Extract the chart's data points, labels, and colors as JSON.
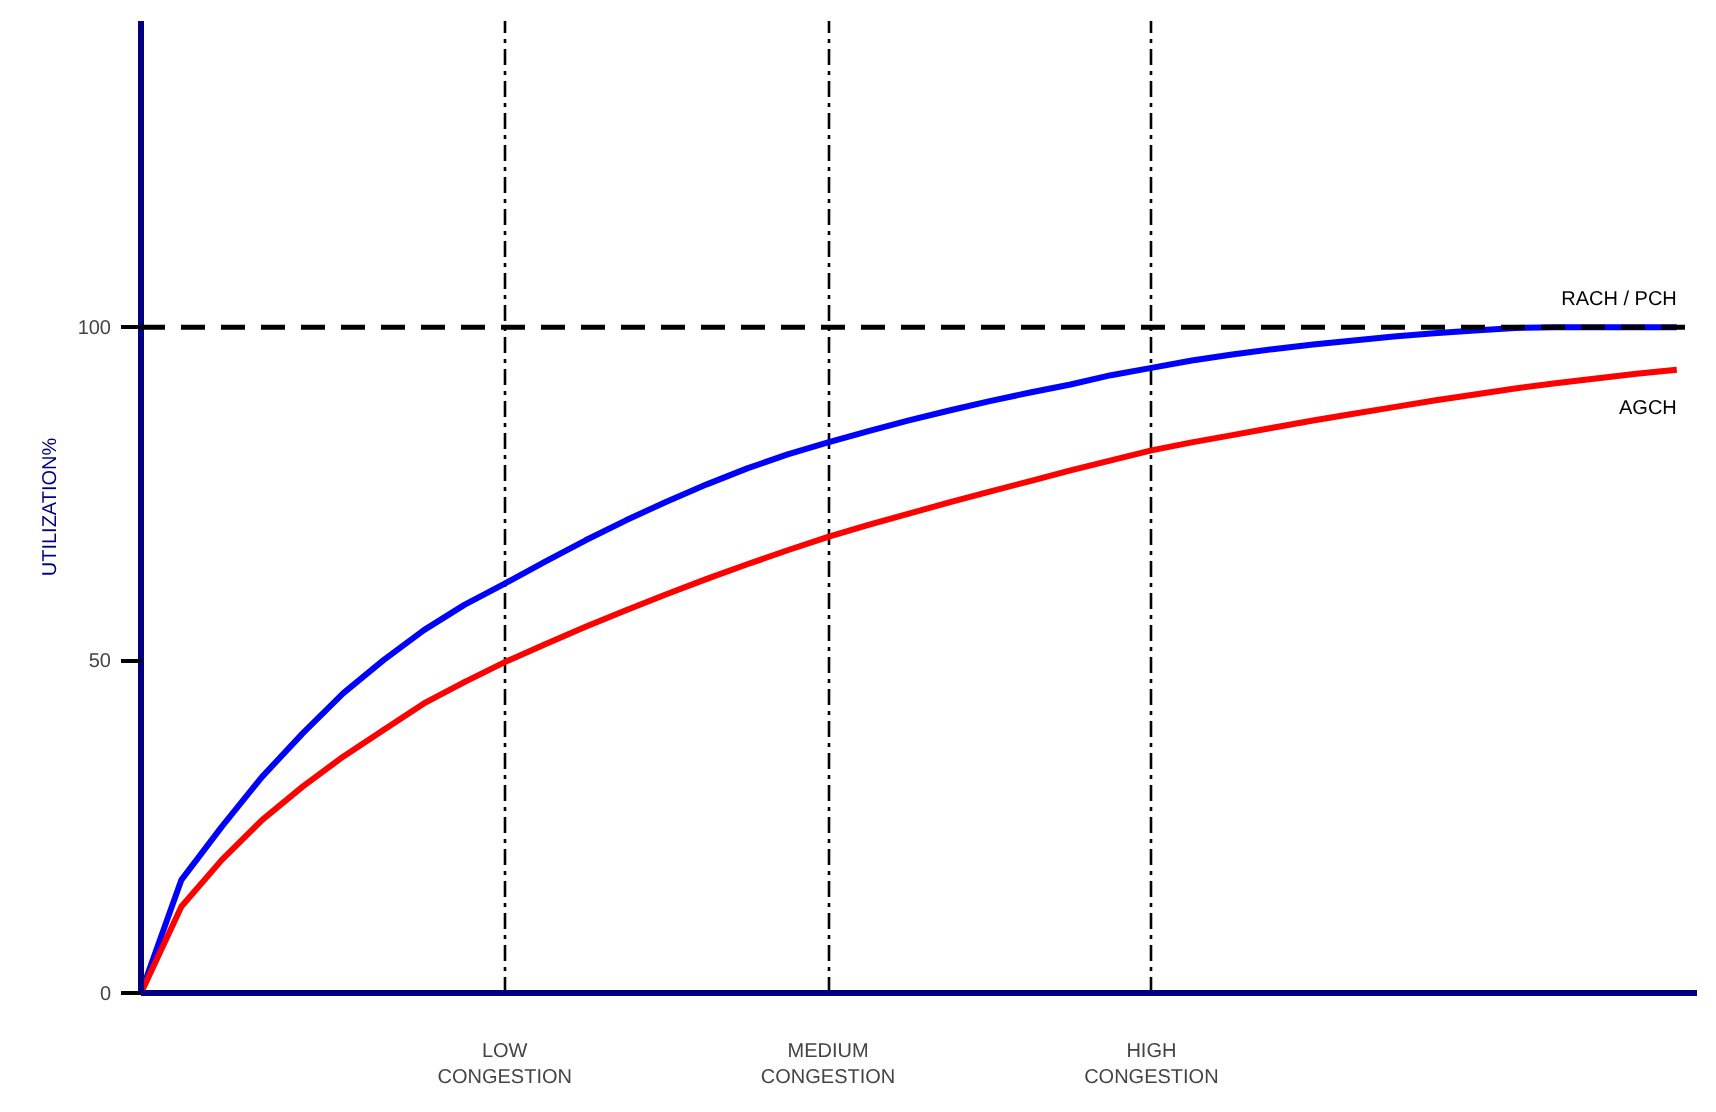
{
  "chart_data": {
    "type": "line",
    "ylabel": "UTILIZATION%",
    "categories": [
      null,
      null,
      null,
      null,
      null,
      null,
      null,
      null,
      null,
      "LOW CONGESTION",
      null,
      null,
      null,
      null,
      null,
      null,
      null,
      "MEDIUM CONGESTION",
      null,
      null,
      null,
      null,
      null,
      null,
      null,
      "HIGH CONGESTION",
      null,
      null,
      null,
      null,
      null,
      null,
      null,
      null,
      null,
      null,
      null,
      null,
      null
    ],
    "series": [
      {
        "name": "RACH / PCH",
        "color": "#0000ff",
        "values": [
          0,
          17,
          25,
          32.5,
          39,
          45,
          50,
          54.5,
          58.3,
          61.5,
          64.8,
          68,
          71,
          73.8,
          76.4,
          78.8,
          80.9,
          82.7,
          84.4,
          86,
          87.5,
          88.9,
          90.2,
          91.4,
          92.8,
          93.9,
          95,
          95.9,
          96.7,
          97.4,
          98,
          98.6,
          99.1,
          99.5,
          99.9,
          100,
          100,
          100,
          100
        ]
      },
      {
        "name": "AGCH",
        "color": "#ff0000",
        "values": [
          0,
          13,
          20,
          26,
          31,
          35.5,
          39.5,
          43.5,
          46.7,
          49.7,
          52.4,
          55,
          57.5,
          59.9,
          62.2,
          64.4,
          66.5,
          68.5,
          70.3,
          72,
          73.7,
          75.3,
          76.9,
          78.5,
          80,
          81.5,
          82.7,
          83.8,
          84.9,
          86,
          87,
          88,
          89,
          89.9,
          90.8,
          91.6,
          92.3,
          93,
          93.6
        ]
      }
    ],
    "ylim": [
      0,
      146
    ],
    "yticks": [
      0,
      50,
      100
    ],
    "grid": "x",
    "marker": "none",
    "line_style": "solid",
    "ref_lines": [
      {
        "axis": "y",
        "value": 100,
        "line_style": "dashed",
        "color": "#000000"
      }
    ]
  }
}
